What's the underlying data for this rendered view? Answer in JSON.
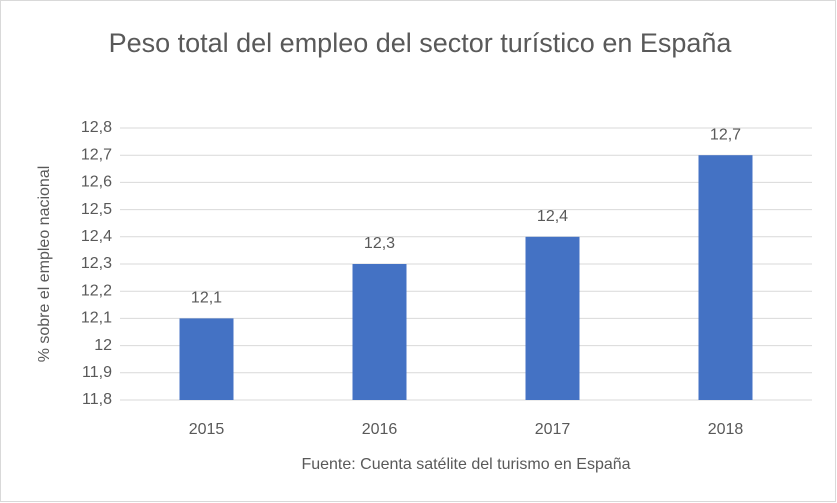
{
  "chart_data": {
    "type": "bar",
    "title": "Peso total del empleo del sector turístico en España",
    "x_label": "Fuente: Cuenta satélite del turismo en España",
    "y_label": "% sobre el empleo nacional",
    "categories": [
      "2015",
      "2016",
      "2017",
      "2018"
    ],
    "values": [
      12.1,
      12.3,
      12.4,
      12.7
    ],
    "value_labels": [
      "12,1",
      "12,3",
      "12,4",
      "12,7"
    ],
    "color": "#4472c4",
    "ylim": [
      11.8,
      12.8
    ],
    "yticks": [
      {
        "value": 11.8,
        "label": "11,8"
      },
      {
        "value": 11.9,
        "label": "11,9"
      },
      12,
      {
        "value": 12.1,
        "label": "12,1"
      },
      {
        "value": 12.2,
        "label": "12,2"
      },
      {
        "value": 12.3,
        "label": "12,3"
      },
      {
        "value": 12.4,
        "label": "12,4"
      },
      {
        "value": 12.5,
        "label": "12,5"
      },
      {
        "value": 12.6,
        "label": "12,6"
      },
      {
        "value": 12.7,
        "label": "12,7"
      },
      {
        "value": 12.8,
        "label": "12,8"
      }
    ],
    "grid": true
  }
}
